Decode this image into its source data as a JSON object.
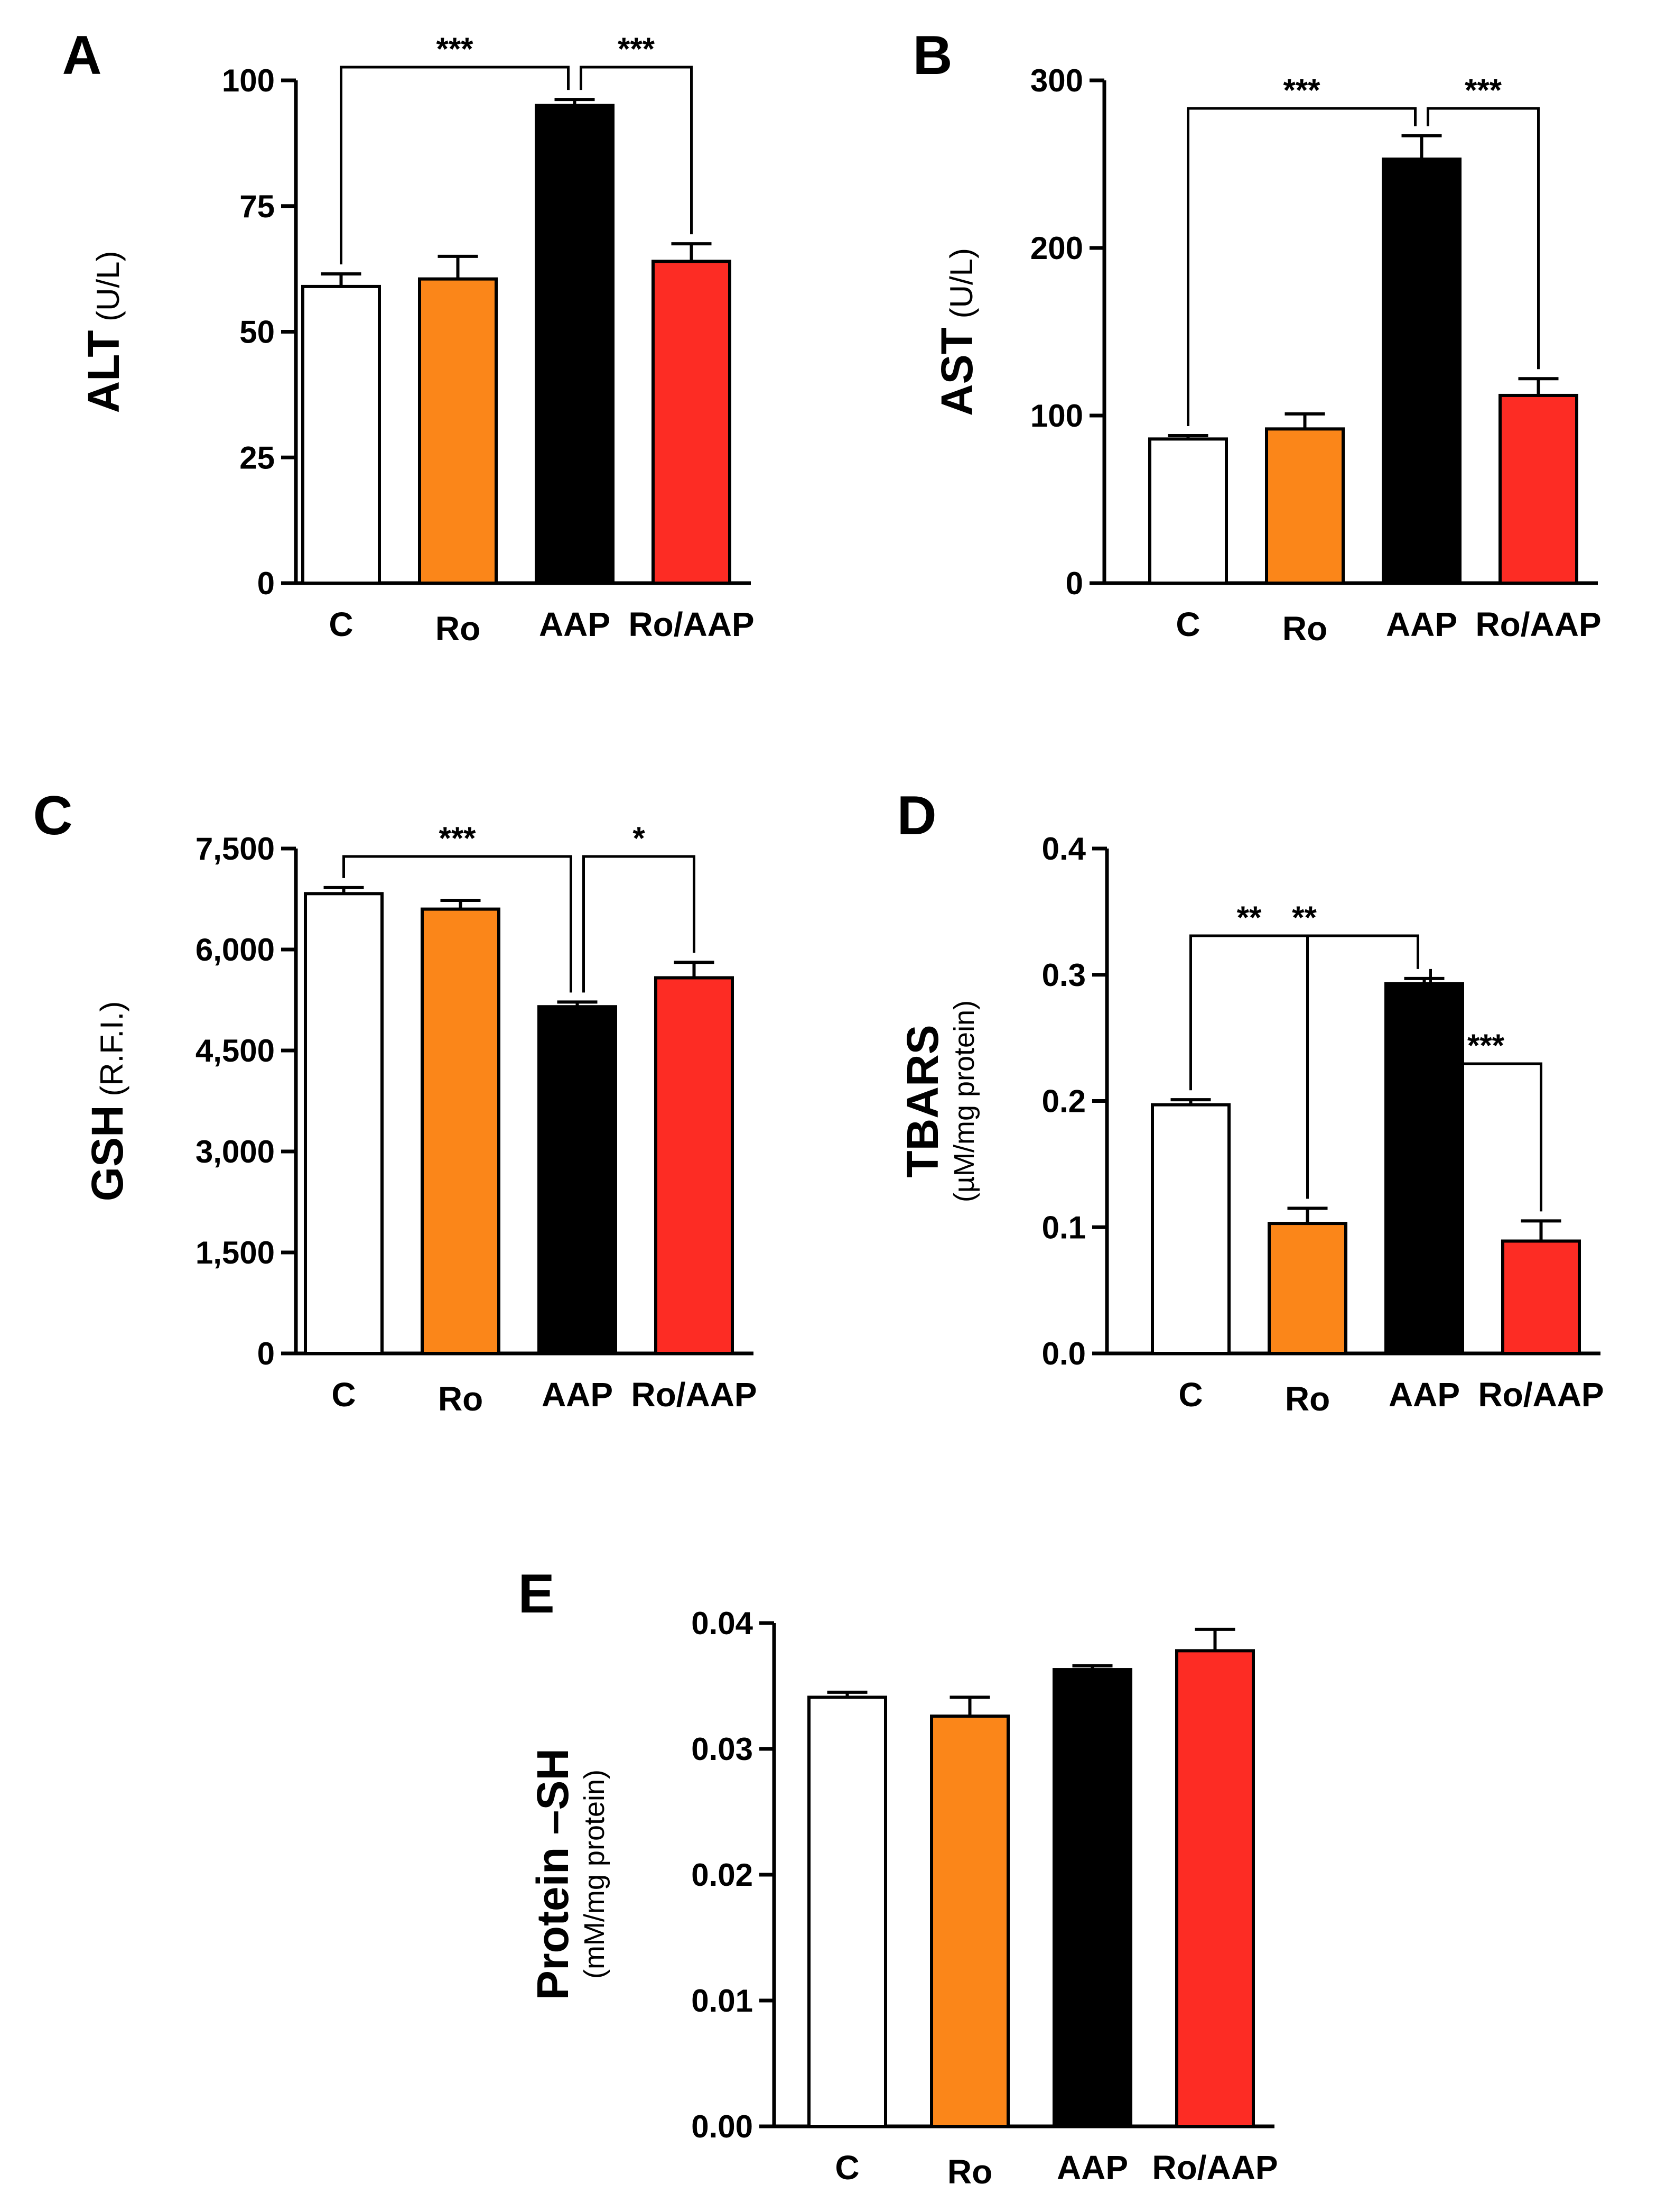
{
  "colors": {
    "C": "#ffffff",
    "Ro": "#fb8619",
    "AAP": "#000000",
    "Ro/AAP": "#fd2c24",
    "axis": "#000000"
  },
  "chart_data": [
    {
      "panel": "A",
      "type": "bar",
      "categories": [
        "C",
        "Ro",
        "AAP",
        "Ro/AAP"
      ],
      "values": [
        59,
        60.5,
        95,
        64
      ],
      "errors": [
        2.5,
        4.5,
        1.2,
        3.5
      ],
      "ylabel": "ALT",
      "yunit": "(U/L)",
      "ylim": [
        0,
        100
      ],
      "yticks": [
        0,
        25,
        50,
        75,
        100
      ],
      "ytick_labels": [
        "0",
        "25",
        "50",
        "75",
        "100"
      ],
      "significance": [
        {
          "from": "C",
          "to": "AAP",
          "label": "***"
        },
        {
          "from": "AAP",
          "to": "Ro/AAP",
          "label": "***"
        }
      ]
    },
    {
      "panel": "B",
      "type": "bar",
      "categories": [
        "C",
        "Ro",
        "AAP",
        "Ro/AAP"
      ],
      "values": [
        86,
        92,
        253,
        112
      ],
      "errors": [
        2,
        9,
        14,
        10
      ],
      "ylabel": "AST",
      "yunit": "(U/L)",
      "ylim": [
        0,
        300
      ],
      "yticks": [
        0,
        100,
        200,
        300
      ],
      "ytick_labels": [
        "0",
        "100",
        "200",
        "300"
      ],
      "significance": [
        {
          "from": "C",
          "to": "AAP",
          "label": "***"
        },
        {
          "from": "AAP",
          "to": "Ro/AAP",
          "label": "***"
        }
      ]
    },
    {
      "panel": "C",
      "type": "bar",
      "categories": [
        "C",
        "Ro",
        "AAP",
        "Ro/AAP"
      ],
      "values": [
        6830,
        6600,
        5150,
        5580
      ],
      "errors": [
        90,
        130,
        70,
        230
      ],
      "ylabel": "GSH",
      "yunit": "(R.F.I.)",
      "ylim": [
        0,
        7500
      ],
      "yticks": [
        0,
        1500,
        3000,
        4500,
        6000,
        7500
      ],
      "ytick_labels": [
        "0",
        "1,500",
        "3,000",
        "4,500",
        "6,000",
        "7,500"
      ],
      "significance": [
        {
          "from": "C",
          "to": "AAP",
          "label": "***"
        },
        {
          "from": "AAP",
          "to": "Ro/AAP",
          "label": "*"
        }
      ]
    },
    {
      "panel": "D",
      "type": "bar",
      "categories": [
        "C",
        "Ro",
        "AAP",
        "Ro/AAP"
      ],
      "values": [
        0.197,
        0.103,
        0.293,
        0.089
      ],
      "errors": [
        0.004,
        0.012,
        0.004,
        0.016
      ],
      "ylabel": "TBARS",
      "ysub": "(µM/mg protein)",
      "ylim": [
        0,
        0.4
      ],
      "yticks": [
        0,
        0.1,
        0.2,
        0.3,
        0.4
      ],
      "ytick_labels": [
        "0.0",
        "0.1",
        "0.2",
        "0.3",
        "0.4"
      ],
      "significance": [
        {
          "from": "C",
          "to": "AAP",
          "label": "**"
        },
        {
          "from": "C",
          "to": "Ro",
          "label": "**"
        },
        {
          "from": "AAP",
          "to": "Ro/AAP",
          "label": "***"
        }
      ]
    },
    {
      "panel": "E",
      "type": "bar",
      "categories": [
        "C",
        "Ro",
        "AAP",
        "Ro/AAP"
      ],
      "values": [
        0.0341,
        0.0326,
        0.0363,
        0.0378
      ],
      "errors": [
        0.0004,
        0.0015,
        0.0003,
        0.0017
      ],
      "ylabel": "Protein –SH",
      "ysub": "(mM/mg protein)",
      "ylim": [
        0,
        0.04
      ],
      "yticks": [
        0,
        0.01,
        0.02,
        0.03,
        0.04
      ],
      "ytick_labels": [
        "0.00",
        "0.01",
        "0.02",
        "0.03",
        "0.04"
      ],
      "significance": []
    }
  ]
}
